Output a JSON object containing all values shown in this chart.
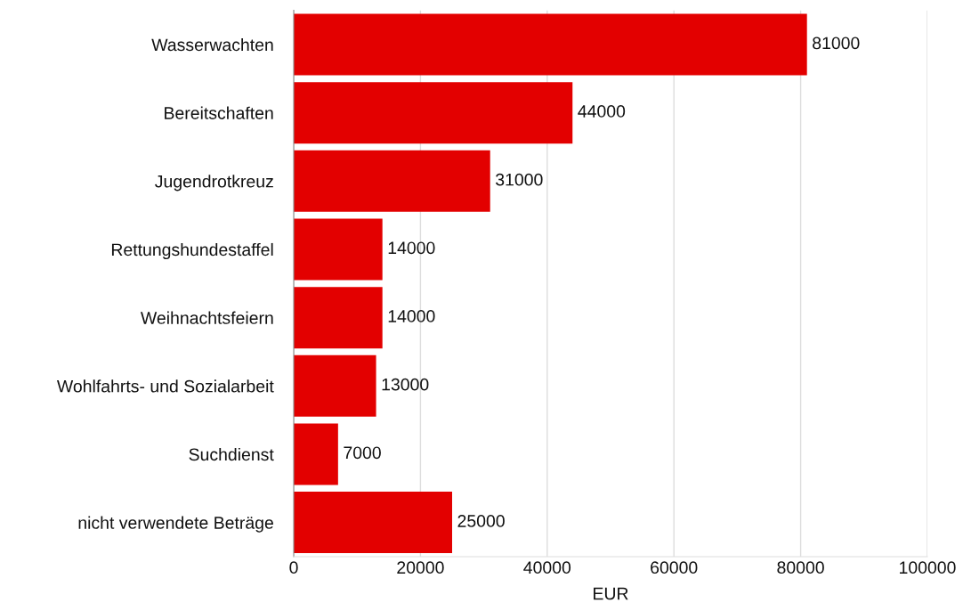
{
  "chart_data": {
    "type": "bar",
    "orientation": "horizontal",
    "xlabel": "EUR",
    "categories": [
      "Wasserwachten",
      "Bereitschaften",
      "Jugendrotkreuz",
      "Rettungshundestaffel",
      "Weihnachtsfeiern",
      "Wohlfahrts- und Sozialarbeit",
      "Suchdienst",
      "nicht verwendete Beträge"
    ],
    "values": [
      81000,
      44000,
      31000,
      14000,
      14000,
      13000,
      7000,
      25000
    ],
    "color": "#e30000",
    "xlim": [
      0,
      100000
    ],
    "xticks": [
      0,
      20000,
      40000,
      60000,
      80000,
      100000
    ],
    "grid": "x",
    "data_labels": true
  }
}
